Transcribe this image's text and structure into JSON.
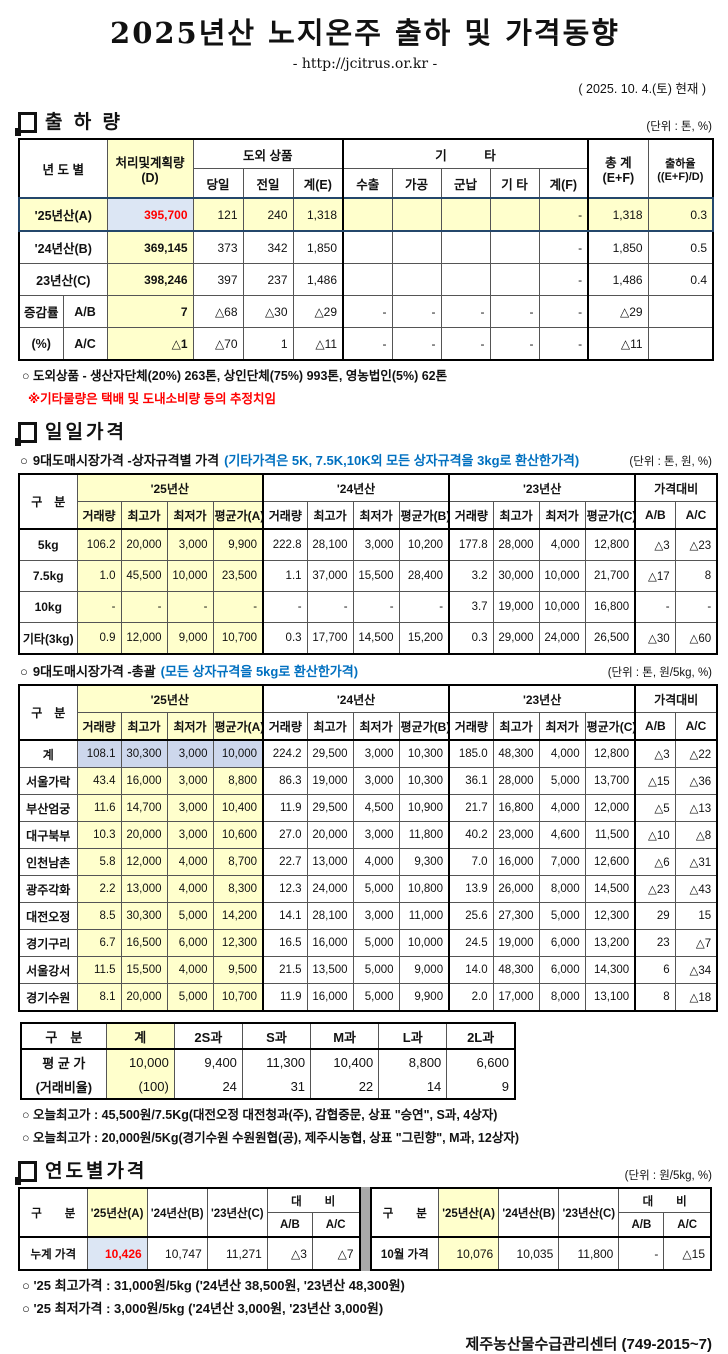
{
  "meta": {
    "title": "2025년산 노지온주 출하 및 가격동향",
    "url": "- http://jcitrus.or.kr -",
    "date": "( 2025.  10.  4.(토) 현재 )",
    "footer": "제주농산물수급관리센터 (749-2015~7)"
  },
  "colors": {
    "highlight_yellow": "#FFFFCC",
    "highlight_blue": "#DCE6F4",
    "alert_red": "#FF0000",
    "note_blue": "#0070C0",
    "current_row_border": "#24476B",
    "divider_gray": "#A9A9A9"
  },
  "shipment": {
    "section": "출 하 량",
    "unit": "(단위 : 톤, %)",
    "header": {
      "year": "년 도 별",
      "plan": "처리및계획량",
      "plan2": "(D)",
      "outside": "도외 상품",
      "outside_sub": [
        "당일",
        "전일",
        "계(E)"
      ],
      "etc": "기   타",
      "etc_sub": [
        "수출",
        "가공",
        "군납",
        "기 타",
        "계(F)"
      ],
      "total": "총  계",
      "total2": "(E+F)",
      "rate": "출하율",
      "rate2": "((E+F)/D)"
    },
    "rows": [
      {
        "label": "'25년산(A)",
        "flag": "current",
        "cells": [
          "395,700",
          "121",
          "240",
          "1,318",
          "",
          "",
          "",
          "",
          "-",
          "1,318",
          "0.3"
        ]
      },
      {
        "label": "'24년산(B)",
        "cells": [
          "369,145",
          "373",
          "342",
          "1,850",
          "",
          "",
          "",
          "",
          "-",
          "1,850",
          "0.5"
        ]
      },
      {
        "label": "23년산(C)",
        "cells": [
          "398,246",
          "397",
          "237",
          "1,486",
          "",
          "",
          "",
          "",
          "-",
          "1,486",
          "0.4"
        ]
      },
      {
        "label": "증감률",
        "sublabel": "A/B",
        "cells": [
          "7",
          "△68",
          "△30",
          "△29",
          "-",
          "-",
          "-",
          "-",
          "-",
          "△29",
          ""
        ]
      },
      {
        "label": "(%)",
        "sublabel": "A/C",
        "cells": [
          "△1",
          "△70",
          "1",
          "△11",
          "-",
          "-",
          "-",
          "-",
          "-",
          "△11",
          ""
        ]
      }
    ],
    "notes": {
      "note1": "○ 도외상품 - 생산자단체(20%) 263톤, 상인단체(75%) 993톤, 영농법인(5%) 62톤",
      "note2": "※기타물량은  택배  및  도내소비량  등의  추정치임"
    }
  },
  "daily": {
    "section": "일일가격",
    "sub1": {
      "bullet": "○",
      "title": "9대도매시장가격 -상자규격별 가격",
      "paren": "(기타가격은 5K, 7.5K,10K외 모든 상자규격을 3kg로 환산한가격)",
      "unit": "(단위 : 톤, 원, %)"
    },
    "price_header": {
      "gubun": "구 분",
      "groups": [
        "'25년산",
        "'24년산",
        "'23년산"
      ],
      "sub": [
        "거래량",
        "최고가",
        "최저가"
      ],
      "avg": [
        "평균가(A)",
        "평균가(B)",
        "평균가(C)"
      ],
      "cmp": "가격대비",
      "cmp_sub": [
        "A/B",
        "A/C"
      ]
    },
    "by_size_rows": [
      {
        "label": "5kg",
        "cells": [
          "106.2",
          "20,000",
          "3,000",
          "9,900",
          "222.8",
          "28,100",
          "3,000",
          "10,200",
          "177.8",
          "28,000",
          "4,000",
          "12,800",
          "△3",
          "△23"
        ]
      },
      {
        "label": "7.5kg",
        "cells": [
          "1.0",
          "45,500",
          "10,000",
          "23,500",
          "1.1",
          "37,000",
          "15,500",
          "28,400",
          "3.2",
          "30,000",
          "10,000",
          "21,700",
          "△17",
          "8"
        ]
      },
      {
        "label": "10kg",
        "cells": [
          "-",
          "-",
          "-",
          "-",
          "-",
          "-",
          "-",
          "-",
          "3.7",
          "19,000",
          "10,000",
          "16,800",
          "-",
          "-"
        ]
      },
      {
        "label": "기타(3kg)",
        "cells": [
          "0.9",
          "12,000",
          "9,000",
          "10,700",
          "0.3",
          "17,700",
          "14,500",
          "15,200",
          "0.3",
          "29,000",
          "24,000",
          "26,500",
          "△30",
          "△60"
        ]
      }
    ],
    "sub2": {
      "bullet": "○",
      "title": "9대도매시장가격 -총괄",
      "paren": "(모든 상자규격을 5kg로 환산한가격)",
      "unit": "(단위 : 톤, 원/5kg, %)"
    },
    "overall_rows": [
      {
        "label": "계",
        "flag": "total",
        "cells": [
          "108.1",
          "30,300",
          "3,000",
          "10,000",
          "224.2",
          "29,500",
          "3,000",
          "10,300",
          "185.0",
          "48,300",
          "4,000",
          "12,800",
          "△3",
          "△22"
        ]
      },
      {
        "label": "서울가락",
        "cells": [
          "43.4",
          "16,000",
          "3,000",
          "8,800",
          "86.3",
          "19,000",
          "3,000",
          "10,300",
          "36.1",
          "28,000",
          "5,000",
          "13,700",
          "△15",
          "△36"
        ]
      },
      {
        "label": "부산엄궁",
        "cells": [
          "11.6",
          "14,700",
          "3,000",
          "10,400",
          "11.9",
          "29,500",
          "4,500",
          "10,900",
          "21.7",
          "16,800",
          "4,000",
          "12,000",
          "△5",
          "△13"
        ]
      },
      {
        "label": "대구북부",
        "cells": [
          "10.3",
          "20,000",
          "3,000",
          "10,600",
          "27.0",
          "20,000",
          "3,000",
          "11,800",
          "40.2",
          "23,000",
          "4,600",
          "11,500",
          "△10",
          "△8"
        ]
      },
      {
        "label": "인천남촌",
        "cells": [
          "5.8",
          "12,000",
          "4,000",
          "8,700",
          "22.7",
          "13,000",
          "4,000",
          "9,300",
          "7.0",
          "16,000",
          "7,000",
          "12,600",
          "△6",
          "△31"
        ]
      },
      {
        "label": "광주각화",
        "cells": [
          "2.2",
          "13,000",
          "4,000",
          "8,300",
          "12.3",
          "24,000",
          "5,000",
          "10,800",
          "13.9",
          "26,000",
          "8,000",
          "14,500",
          "△23",
          "△43"
        ]
      },
      {
        "label": "대전오정",
        "cells": [
          "8.5",
          "30,300",
          "5,000",
          "14,200",
          "14.1",
          "28,100",
          "3,000",
          "11,000",
          "25.6",
          "27,300",
          "5,000",
          "12,300",
          "29",
          "15"
        ]
      },
      {
        "label": "경기구리",
        "cells": [
          "6.7",
          "16,500",
          "6,000",
          "12,300",
          "16.5",
          "16,000",
          "5,000",
          "10,000",
          "24.5",
          "19,000",
          "6,000",
          "13,200",
          "23",
          "△7"
        ]
      },
      {
        "label": "서울강서",
        "cells": [
          "11.5",
          "15,500",
          "4,000",
          "9,500",
          "21.5",
          "13,500",
          "5,000",
          "9,000",
          "14.0",
          "48,300",
          "6,000",
          "14,300",
          "6",
          "△34"
        ]
      },
      {
        "label": "경기수원",
        "cells": [
          "8.1",
          "20,000",
          "5,000",
          "10,700",
          "11.9",
          "16,000",
          "5,000",
          "9,900",
          "2.0",
          "17,000",
          "8,000",
          "13,100",
          "8",
          "△18"
        ]
      }
    ],
    "size_summary": {
      "header": [
        "구 분",
        "계",
        "2S과",
        "S과",
        "M과",
        "L과",
        "2L과"
      ],
      "rows": [
        {
          "label": "평 균 가",
          "flag": "avg",
          "cells": [
            "10,000",
            "9,400",
            "11,300",
            "10,400",
            "8,800",
            "6,600"
          ]
        },
        {
          "label": "(거래비율)",
          "flag": "ratio",
          "cells": [
            "(100)",
            "24",
            "31",
            "22",
            "14",
            "9"
          ]
        }
      ]
    },
    "notes": [
      "○ 오늘최고가 : 45,500원/7.5Kg(대전오정 대전청과(주), 감협중문, 상표 \"승연\", S과, 4상자)",
      "○ 오늘최고가 : 20,000원/5Kg(경기수원 수원원협(공), 제주시농협, 상표 \"그린향\", M과, 12상자)"
    ]
  },
  "yearly": {
    "section": "연도별가격",
    "unit": "(단위 : 원/5kg, %)",
    "header": {
      "gubun": "구  분",
      "years": [
        "'25년산(A)",
        "'24년산(B)",
        "'23년산(C)"
      ],
      "cmp": "대  비",
      "cmp_sub": [
        "A/B",
        "A/C"
      ]
    },
    "left_rows": [
      {
        "label": "누계 가격",
        "cells": [
          "10,426",
          "10,747",
          "11,271",
          "△3",
          "△7"
        ]
      }
    ],
    "right_rows": [
      {
        "label": "10월 가격",
        "cells": [
          "10,076",
          "10,035",
          "11,800",
          "-",
          "△15"
        ]
      }
    ],
    "notes": [
      "○ '25 최고가격 :  31,000원/5kg ('24년산 38,500원, '23년산 48,300원)",
      "○ '25 최저가격 :   3,000원/5kg ('24년산  3,000원, '23년산  3,000원)"
    ]
  }
}
